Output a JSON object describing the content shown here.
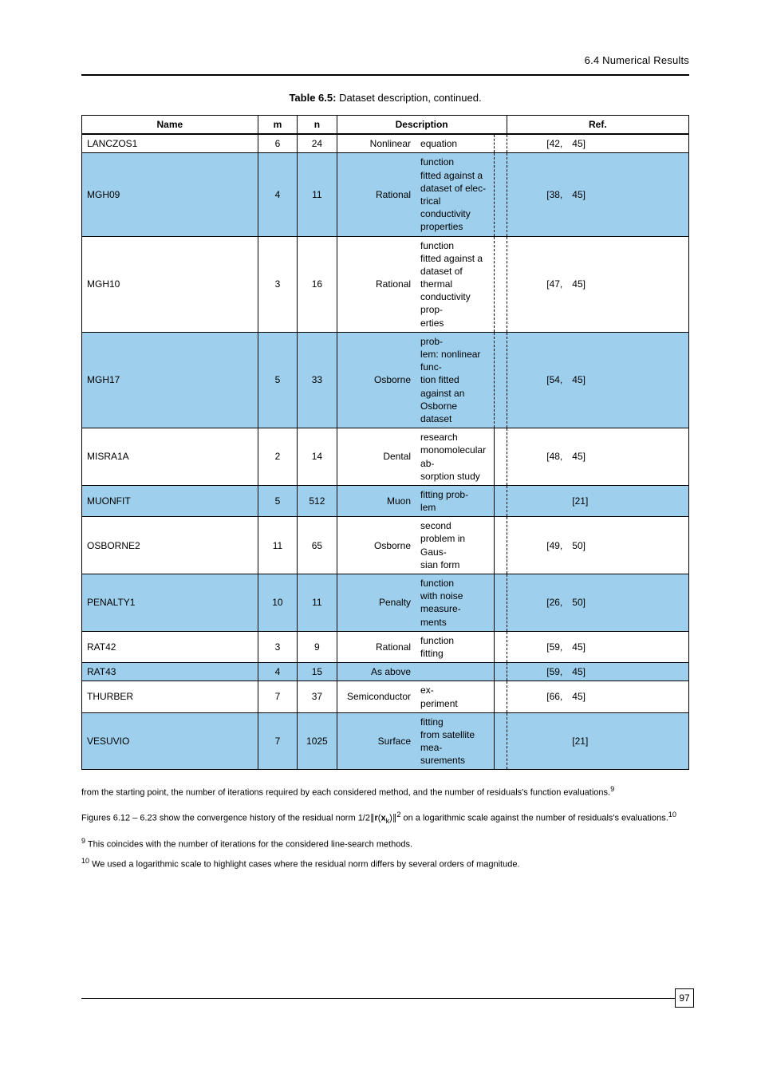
{
  "header": {
    "running_title": "6.4 Numerical Results"
  },
  "caption": {
    "label_bold": "Table 6.5:",
    "text": " Dataset description, continued."
  },
  "table": {
    "type": "table",
    "shade_color": "#9ecfec",
    "columns": [
      "Name",
      "m",
      "n",
      "Description",
      "",
      "Ref."
    ],
    "rows": [
      {
        "shaded": false,
        "name": "LANCZOS1",
        "m": "6",
        "n": "24",
        "desc_l": "Nonlinear",
        "desc_r": "equation",
        "ref_l": "[42,",
        "ref_r": "45]"
      },
      {
        "shaded": true,
        "name": "MGH09",
        "m": "4",
        "n": "11",
        "desc_l": "Rational",
        "desc_r": "function\nfitted against a\ndataset of elec-\ntrical conductivity\nproperties",
        "ref_l": "[38,",
        "ref_r": "45]"
      },
      {
        "shaded": false,
        "name": "MGH10",
        "m": "3",
        "n": "16",
        "desc_l": "Rational",
        "desc_r": "function\nfitted against a\ndataset of thermal\nconductivity prop-\nerties",
        "ref_l": "[47,",
        "ref_r": "45]"
      },
      {
        "shaded": true,
        "name": "MGH17",
        "m": "5",
        "n": "33",
        "desc_l": "Osborne",
        "desc_r": "prob-\nlem: nonlinear func-\ntion fitted against an\nOsborne dataset",
        "ref_l": "[54,",
        "ref_r": "45]"
      },
      {
        "shaded": false,
        "name": "MISRA1A",
        "m": "2",
        "n": "14",
        "desc_l": "Dental",
        "desc_r": "research\nmonomolecular ab-\nsorption study",
        "sep": true,
        "ref_l": "[48,",
        "ref_r": "45]"
      },
      {
        "shaded": true,
        "name": "MUONFIT",
        "m": "5",
        "n": "512",
        "desc_l": "Muon",
        "desc_r": "fitting prob-\nlem",
        "sep": true,
        "ref_l": "",
        "ref_r": "[21]"
      },
      {
        "shaded": false,
        "name": "OSBORNE2",
        "m": "11",
        "n": "65",
        "desc_l": "Osborne",
        "desc_r": "second\nproblem in Gaus-\nsian form",
        "sep": true,
        "ref_l": "[49,",
        "ref_r": "50]"
      },
      {
        "shaded": true,
        "name": "PENALTY1",
        "m": "10",
        "n": "11",
        "desc_l": "Penalty",
        "desc_r": "function\nwith noise measure-\nments",
        "sep": true,
        "ref_l": "[26,",
        "ref_r": "50]"
      },
      {
        "shaded": false,
        "name": "RAT42",
        "m": "3",
        "n": "9",
        "desc_l": "Rational",
        "desc_r": "function\nfitting",
        "sep": true,
        "ref_l": "[59,",
        "ref_r": "45]"
      },
      {
        "shaded": true,
        "name": "RAT43",
        "m": "4",
        "n": "15",
        "desc_l": "As above",
        "desc_r": "",
        "sep": true,
        "ref_l": "[59,",
        "ref_r": "45]"
      },
      {
        "shaded": false,
        "name": "THURBER",
        "m": "7",
        "n": "37",
        "desc_l": "Semiconductor",
        "desc_r": "ex-\nperiment",
        "sep": true,
        "ref_l": "[66,",
        "ref_r": "45]"
      },
      {
        "shaded": true,
        "name": "VESUVIO",
        "m": "7",
        "n": "1025",
        "desc_l": "Surface",
        "desc_r": "fitting\nfrom satellite mea-\nsurements",
        "sep": true,
        "ref_l": "",
        "ref_r": "[21]"
      }
    ]
  },
  "footnotes": {
    "lines": [
      "from the starting point, the number of iterations required by each considered method, and the number of residuals's function evaluations.<sup>9</sup>",
      "Figures 6.12 &ndash; 6.23 show the convergence history of the residual norm 1/2∥<b>r</b>(<b>x</b><sub>k</sub>)∥<sup>2</sup> on a logarithmic scale against the number of residuals's evaluations.<sup>10</sup>"
    ],
    "notes": [
      {
        "num": "9",
        "text": "This coincides with the number of iterations for the considered line-search methods."
      },
      {
        "num": "10",
        "text": "We used a logarithmic scale to highlight cases where the residual norm differs by several orders of magnitude."
      }
    ]
  },
  "page_number": "97"
}
